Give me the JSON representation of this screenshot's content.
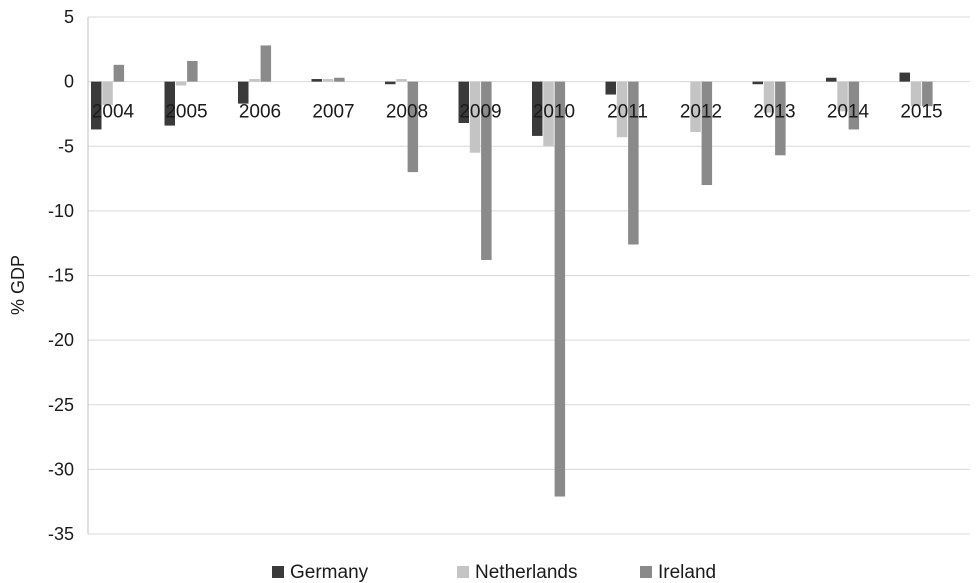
{
  "chart_data": {
    "type": "bar",
    "ylabel": "% GDP",
    "xlabel": "",
    "ylim": [
      -35,
      5
    ],
    "yticks": [
      5,
      0,
      -5,
      -10,
      -15,
      -20,
      -25,
      -30,
      -35
    ],
    "grid": true,
    "legend_position": "bottom",
    "categories": [
      "2004",
      "2005",
      "2006",
      "2007",
      "2008",
      "2009",
      "2010",
      "2011",
      "2012",
      "2013",
      "2014",
      "2015"
    ],
    "series": [
      {
        "name": "Germany",
        "color": "#3a3a3a",
        "values": [
          -3.7,
          -3.4,
          -1.7,
          0.2,
          -0.2,
          -3.2,
          -4.2,
          -1.0,
          0.0,
          -0.2,
          0.3,
          0.7
        ]
      },
      {
        "name": "Netherlands",
        "color": "#c4c4c4",
        "values": [
          -1.8,
          -0.3,
          0.2,
          0.2,
          0.2,
          -5.5,
          -5.0,
          -4.3,
          -3.9,
          -2.4,
          -2.3,
          -1.9
        ]
      },
      {
        "name": "Ireland",
        "color": "#8a8a8a",
        "values": [
          1.3,
          1.6,
          2.8,
          0.3,
          -7.0,
          -13.8,
          -32.1,
          -12.6,
          -8.0,
          -5.7,
          -3.7,
          -1.9
        ]
      }
    ]
  }
}
